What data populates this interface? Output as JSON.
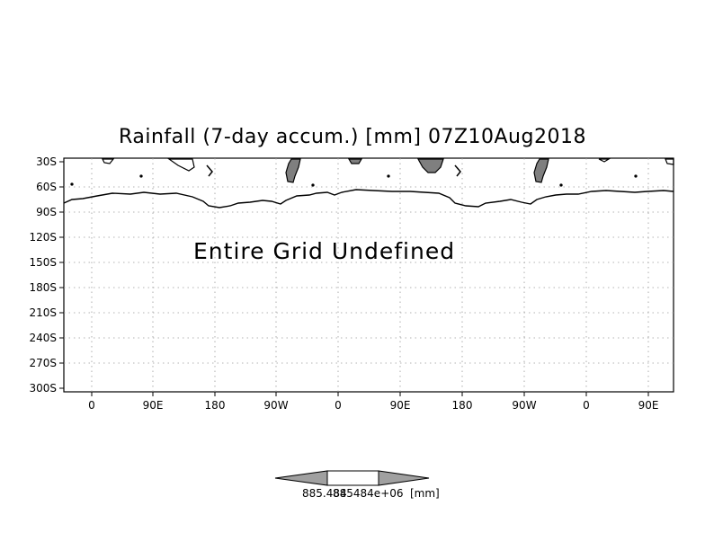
{
  "title": "Rainfall (7-day accum.) [mm] 07Z10Aug2018",
  "message": "Entire Grid Undefined",
  "y_axis_labels": [
    "30S",
    "60S",
    "90S",
    "120S",
    "150S",
    "180S",
    "210S",
    "240S",
    "270S",
    "300S"
  ],
  "x_axis_labels": [
    "0",
    "90E",
    "180",
    "90W",
    "0",
    "90E",
    "180",
    "90W",
    "0",
    "90E"
  ],
  "colorbar": {
    "value_label_left": "885.484",
    "value_label_right": "885484e+06",
    "unit": "[mm]"
  },
  "colors": {
    "land_fill": "#7f7f7f",
    "colorbar_fill": "#a0a0a0",
    "grid": "#000000"
  }
}
